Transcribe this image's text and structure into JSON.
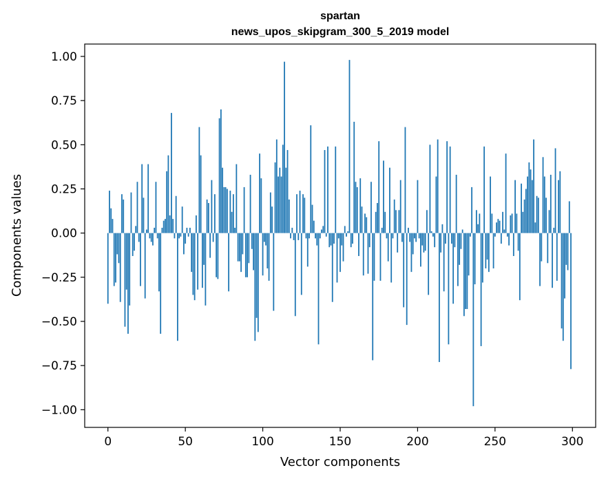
{
  "chart_data": {
    "type": "bar",
    "title": "spartan",
    "subtitle": "news_upos_skipgram_300_5_2019 model",
    "xlabel": "Vector components",
    "ylabel": "Components values",
    "xlim": [
      -15,
      315
    ],
    "ylim": [
      -1.1,
      1.07
    ],
    "xticks": [
      0,
      50,
      100,
      150,
      200,
      250,
      300
    ],
    "xtick_labels": [
      "0",
      "50",
      "100",
      "150",
      "200",
      "250",
      "300"
    ],
    "yticks": [
      1.0,
      0.75,
      0.5,
      0.25,
      0.0,
      -0.25,
      -0.5,
      -0.75,
      -1.0
    ],
    "ytick_labels": [
      "1.00",
      "0.75",
      "0.50",
      "0.25",
      "0.00",
      "−0.25",
      "−0.50",
      "−0.75",
      "−1.00"
    ],
    "grid": false,
    "legend": "none",
    "bar_color": "#1f77b4",
    "values": [
      -0.4,
      0.24,
      0.14,
      0.08,
      -0.3,
      -0.28,
      -0.12,
      -0.17,
      -0.39,
      0.22,
      0.19,
      -0.53,
      -0.32,
      -0.57,
      -0.41,
      0.23,
      -0.13,
      -0.1,
      0.04,
      0.29,
      -0.05,
      -0.3,
      0.39,
      0.2,
      -0.37,
      0.02,
      0.39,
      -0.03,
      -0.05,
      -0.07,
      0.03,
      0.29,
      -0.03,
      -0.33,
      -0.57,
      0.03,
      0.07,
      0.08,
      0.35,
      0.44,
      0.1,
      0.68,
      0.08,
      -0.03,
      0.21,
      -0.61,
      -0.03,
      -0.02,
      0.15,
      -0.12,
      -0.06,
      0.03,
      -0.02,
      0.03,
      -0.22,
      -0.35,
      -0.38,
      0.1,
      -0.32,
      0.6,
      0.44,
      -0.31,
      -0.18,
      -0.41,
      0.19,
      0.17,
      -0.14,
      0.3,
      -0.05,
      0.22,
      -0.25,
      -0.26,
      0.65,
      0.7,
      0.37,
      0.26,
      0.26,
      0.25,
      -0.33,
      0.24,
      0.12,
      0.22,
      0.03,
      0.39,
      -0.16,
      -0.16,
      -0.22,
      -0.12,
      0.26,
      -0.25,
      -0.25,
      -0.17,
      0.33,
      -0.09,
      -0.21,
      -0.61,
      -0.48,
      -0.56,
      0.45,
      0.31,
      -0.24,
      -0.05,
      -0.07,
      -0.2,
      -0.27,
      0.23,
      0.15,
      -0.44,
      0.4,
      0.53,
      0.32,
      0.37,
      0.32,
      0.5,
      0.97,
      0.37,
      0.47,
      0.19,
      -0.03,
      0.03,
      -0.04,
      -0.47,
      0.22,
      -0.04,
      0.24,
      -0.35,
      0.22,
      0.2,
      -0.03,
      -0.19,
      -0.03,
      0.61,
      0.16,
      0.07,
      -0.03,
      -0.07,
      -0.63,
      -0.03,
      0.02,
      0.04,
      0.47,
      -0.02,
      0.49,
      -0.08,
      -0.07,
      -0.39,
      -0.06,
      0.49,
      -0.28,
      -0.03,
      -0.22,
      -0.07,
      -0.16,
      0.04,
      -0.02,
      0.01,
      0.98,
      -0.08,
      -0.06,
      0.63,
      0.29,
      0.26,
      -0.13,
      0.31,
      0.15,
      -0.24,
      0.11,
      0.09,
      -0.23,
      -0.08,
      0.29,
      -0.72,
      -0.27,
      0.12,
      0.17,
      0.52,
      -0.27,
      0.03,
      0.41,
      0.12,
      -0.03,
      -0.16,
      0.37,
      -0.28,
      -0.03,
      0.19,
      0.13,
      -0.11,
      0.13,
      0.3,
      -0.05,
      -0.42,
      0.6,
      -0.52,
      0.03,
      -0.05,
      -0.22,
      -0.12,
      -0.03,
      -0.05,
      0.3,
      -0.03,
      -0.19,
      -0.07,
      -0.11,
      -0.1,
      0.13,
      -0.35,
      0.5,
      0.01,
      -0.02,
      -0.08,
      0.32,
      0.53,
      -0.73,
      -0.11,
      0.05,
      -0.33,
      -0.06,
      0.52,
      -0.63,
      0.49,
      -0.06,
      -0.4,
      -0.08,
      0.33,
      -0.3,
      -0.18,
      -0.09,
      0.02,
      -0.47,
      -0.43,
      -0.43,
      -0.24,
      -0.02,
      0.26,
      -0.98,
      -0.29,
      0.13,
      0.05,
      0.11,
      -0.64,
      -0.28,
      0.49,
      -0.2,
      -0.15,
      -0.22,
      0.32,
      0.11,
      -0.2,
      -0.02,
      0.06,
      0.08,
      0.07,
      -0.06,
      0.12,
      0.02,
      0.45,
      -0.02,
      -0.07,
      0.1,
      0.11,
      -0.13,
      0.3,
      0.11,
      -0.1,
      -0.38,
      0.28,
      0.12,
      0.19,
      0.25,
      0.32,
      0.4,
      0.36,
      0.3,
      0.53,
      0.06,
      0.21,
      0.2,
      -0.3,
      -0.16,
      0.43,
      0.32,
      0.2,
      -0.17,
      0.13,
      0.33,
      -0.31,
      0.03,
      0.48,
      -0.27,
      0.3,
      0.35,
      -0.54,
      -0.61,
      -0.37,
      -0.18,
      -0.21,
      0.18,
      -0.77
    ]
  }
}
